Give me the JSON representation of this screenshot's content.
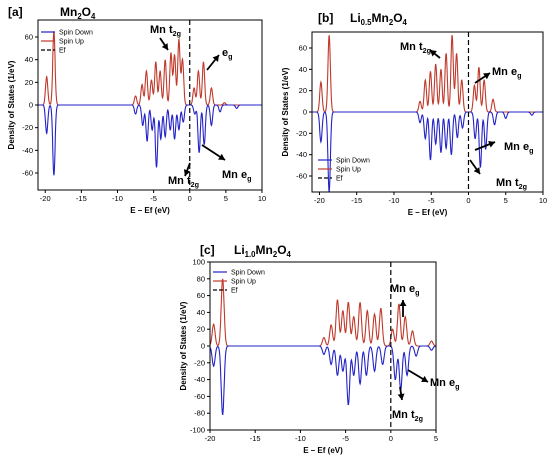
{
  "chart_data": [
    {
      "type": "line",
      "panel_label": "[a]",
      "formula": {
        "base": "Mn",
        "sub1": "2",
        "mid": "O",
        "sub2": "4"
      },
      "xlabel": "E – Ef (eV)",
      "ylabel": "Density of States (1/eV)",
      "xlim": [
        -21,
        10
      ],
      "ylim": [
        -75,
        75
      ],
      "xticks": [
        -20,
        -15,
        -10,
        -5,
        0,
        5,
        10
      ],
      "yticks": [
        -60,
        -40,
        -20,
        0,
        20,
        40,
        60
      ],
      "legend_position": "top-left",
      "legend": [
        "Spin Down",
        "Spin Up",
        "Ef"
      ],
      "annotations": [
        {
          "base": "Mn t",
          "sub": "2g"
        },
        {
          "base": "e",
          "sub": "g"
        },
        {
          "base": "Mn t",
          "sub": "2g"
        },
        {
          "base": "Mn e",
          "sub": "g"
        }
      ],
      "series": [
        {
          "name": "Spin Up",
          "color": "#c0392b",
          "peaks": [
            [
              -19.8,
              25
            ],
            [
              -18.8,
              65
            ],
            [
              -7.5,
              8
            ],
            [
              -6.6,
              18
            ],
            [
              -6.0,
              30
            ],
            [
              -5.3,
              22
            ],
            [
              -4.7,
              38
            ],
            [
              -4.1,
              30
            ],
            [
              -3.4,
              40
            ],
            [
              -2.6,
              46
            ],
            [
              -2.1,
              44
            ],
            [
              -1.5,
              58
            ],
            [
              -1.0,
              40
            ],
            [
              0.6,
              15
            ],
            [
              1.2,
              30
            ],
            [
              1.9,
              38
            ],
            [
              3.0,
              15
            ],
            [
              4.8,
              2
            ]
          ]
        },
        {
          "name": "Spin Down",
          "color": "#2323c8",
          "peaks": [
            [
              -19.8,
              -25
            ],
            [
              -18.8,
              -62
            ],
            [
              -7.5,
              -8
            ],
            [
              -6.5,
              -18
            ],
            [
              -5.9,
              -32
            ],
            [
              -5.2,
              -22
            ],
            [
              -4.6,
              -55
            ],
            [
              -4.0,
              -30
            ],
            [
              -3.4,
              -28
            ],
            [
              -2.7,
              -22
            ],
            [
              -2.1,
              -30
            ],
            [
              -1.5,
              -22
            ],
            [
              -0.9,
              -15
            ],
            [
              0.7,
              -8
            ],
            [
              1.3,
              -42
            ],
            [
              2.0,
              -35
            ],
            [
              3.0,
              -18
            ],
            [
              4.2,
              -6
            ],
            [
              6.5,
              -3
            ]
          ]
        },
        {
          "name": "Ef",
          "color": "#000000",
          "x": 0
        }
      ]
    },
    {
      "type": "line",
      "panel_label": "[b]",
      "formula": {
        "base": "Li",
        "sub1": "0.5",
        "mid": "Mn",
        "sub2": "2",
        "tail": "O",
        "sub3": "4"
      },
      "xlabel": "E – Ef (eV)",
      "ylabel": "Density of States (1/eV)",
      "xlim": [
        -21,
        10
      ],
      "ylim": [
        -75,
        75
      ],
      "xticks": [
        -20,
        -15,
        -10,
        -5,
        0,
        5,
        10
      ],
      "yticks": [
        -60,
        -40,
        -20,
        0,
        20,
        40,
        60
      ],
      "legend_position": "bottom-left",
      "legend": [
        "Spin Down",
        "Spin Up",
        "Ef"
      ],
      "annotations": [
        {
          "base": "Mn t",
          "sub": "2g"
        },
        {
          "base": "Mn e",
          "sub": "g"
        },
        {
          "base": "Mn e",
          "sub": "g"
        },
        {
          "base": "Mn t",
          "sub": "2g"
        }
      ],
      "series": [
        {
          "name": "Spin Up",
          "color": "#c0392b",
          "peaks": [
            [
              -19.8,
              28
            ],
            [
              -18.7,
              72
            ],
            [
              -6.5,
              10
            ],
            [
              -5.8,
              30
            ],
            [
              -5.1,
              38
            ],
            [
              -4.4,
              45
            ],
            [
              -3.7,
              40
            ],
            [
              -3.0,
              55
            ],
            [
              -2.2,
              72
            ],
            [
              -1.6,
              55
            ],
            [
              -0.9,
              30
            ],
            [
              0.8,
              25
            ],
            [
              1.4,
              42
            ],
            [
              2.1,
              30
            ],
            [
              3.3,
              12
            ]
          ]
        },
        {
          "name": "Spin Down",
          "color": "#2323c8",
          "peaks": [
            [
              -19.8,
              -28
            ],
            [
              -18.7,
              -75
            ],
            [
              -6.5,
              -10
            ],
            [
              -5.8,
              -25
            ],
            [
              -5.1,
              -45
            ],
            [
              -4.4,
              -30
            ],
            [
              -3.7,
              -38
            ],
            [
              -3.0,
              -34
            ],
            [
              -2.3,
              -40
            ],
            [
              -1.5,
              -24
            ],
            [
              -0.8,
              -15
            ],
            [
              0.9,
              -25
            ],
            [
              1.6,
              -52
            ],
            [
              2.3,
              -35
            ],
            [
              3.5,
              -12
            ],
            [
              5.0,
              -6
            ],
            [
              8.5,
              -3
            ]
          ]
        },
        {
          "name": "Ef",
          "color": "#000000",
          "x": 0
        }
      ]
    },
    {
      "type": "line",
      "panel_label": "[c]",
      "formula": {
        "base": "Li",
        "sub1": "1.0",
        "mid": "Mn",
        "sub2": "2",
        "tail": "O",
        "sub3": "4"
      },
      "xlabel": "E – Ef (eV)",
      "ylabel": "Density of States (1/eV)",
      "xlim": [
        -20,
        5
      ],
      "ylim": [
        -100,
        100
      ],
      "xticks": [
        -20,
        -15,
        -10,
        -5,
        0,
        5
      ],
      "yticks": [
        -100,
        -80,
        -60,
        -40,
        -20,
        0,
        20,
        40,
        60,
        80,
        100
      ],
      "legend_position": "top-left",
      "legend": [
        "Spin Down",
        "Spin Up",
        "Ef"
      ],
      "annotations": [
        {
          "base": "Mn e",
          "sub": "g"
        },
        {
          "base": "Mn e",
          "sub": "g"
        },
        {
          "base": "Mn t",
          "sub": "2g"
        }
      ],
      "series": [
        {
          "name": "Spin Up",
          "color": "#c0392b",
          "peaks": [
            [
              -19.6,
              26
            ],
            [
              -18.6,
              80
            ],
            [
              -7.4,
              10
            ],
            [
              -6.6,
              25
            ],
            [
              -5.9,
              55
            ],
            [
              -5.3,
              42
            ],
            [
              -4.7,
              52
            ],
            [
              -4.1,
              35
            ],
            [
              -3.4,
              52
            ],
            [
              -2.6,
              42
            ],
            [
              -1.8,
              38
            ],
            [
              -1.1,
              45
            ],
            [
              0.2,
              20
            ],
            [
              0.9,
              50
            ],
            [
              1.6,
              35
            ],
            [
              2.4,
              18
            ],
            [
              4.5,
              6
            ]
          ]
        },
        {
          "name": "Spin Down",
          "color": "#2323c8",
          "peaks": [
            [
              -19.6,
              -24
            ],
            [
              -18.6,
              -82
            ],
            [
              -7.4,
              -10
            ],
            [
              -6.6,
              -22
            ],
            [
              -5.9,
              -35
            ],
            [
              -5.3,
              -30
            ],
            [
              -4.7,
              -70
            ],
            [
              -4.1,
              -35
            ],
            [
              -3.4,
              -45
            ],
            [
              -2.7,
              -35
            ],
            [
              -1.8,
              -30
            ],
            [
              -0.9,
              -22
            ],
            [
              0.5,
              -40
            ],
            [
              1.1,
              -52
            ],
            [
              1.8,
              -35
            ],
            [
              2.8,
              -12
            ],
            [
              4.5,
              -5
            ]
          ]
        },
        {
          "name": "Ef",
          "color": "#000000",
          "x": 0
        }
      ]
    }
  ]
}
